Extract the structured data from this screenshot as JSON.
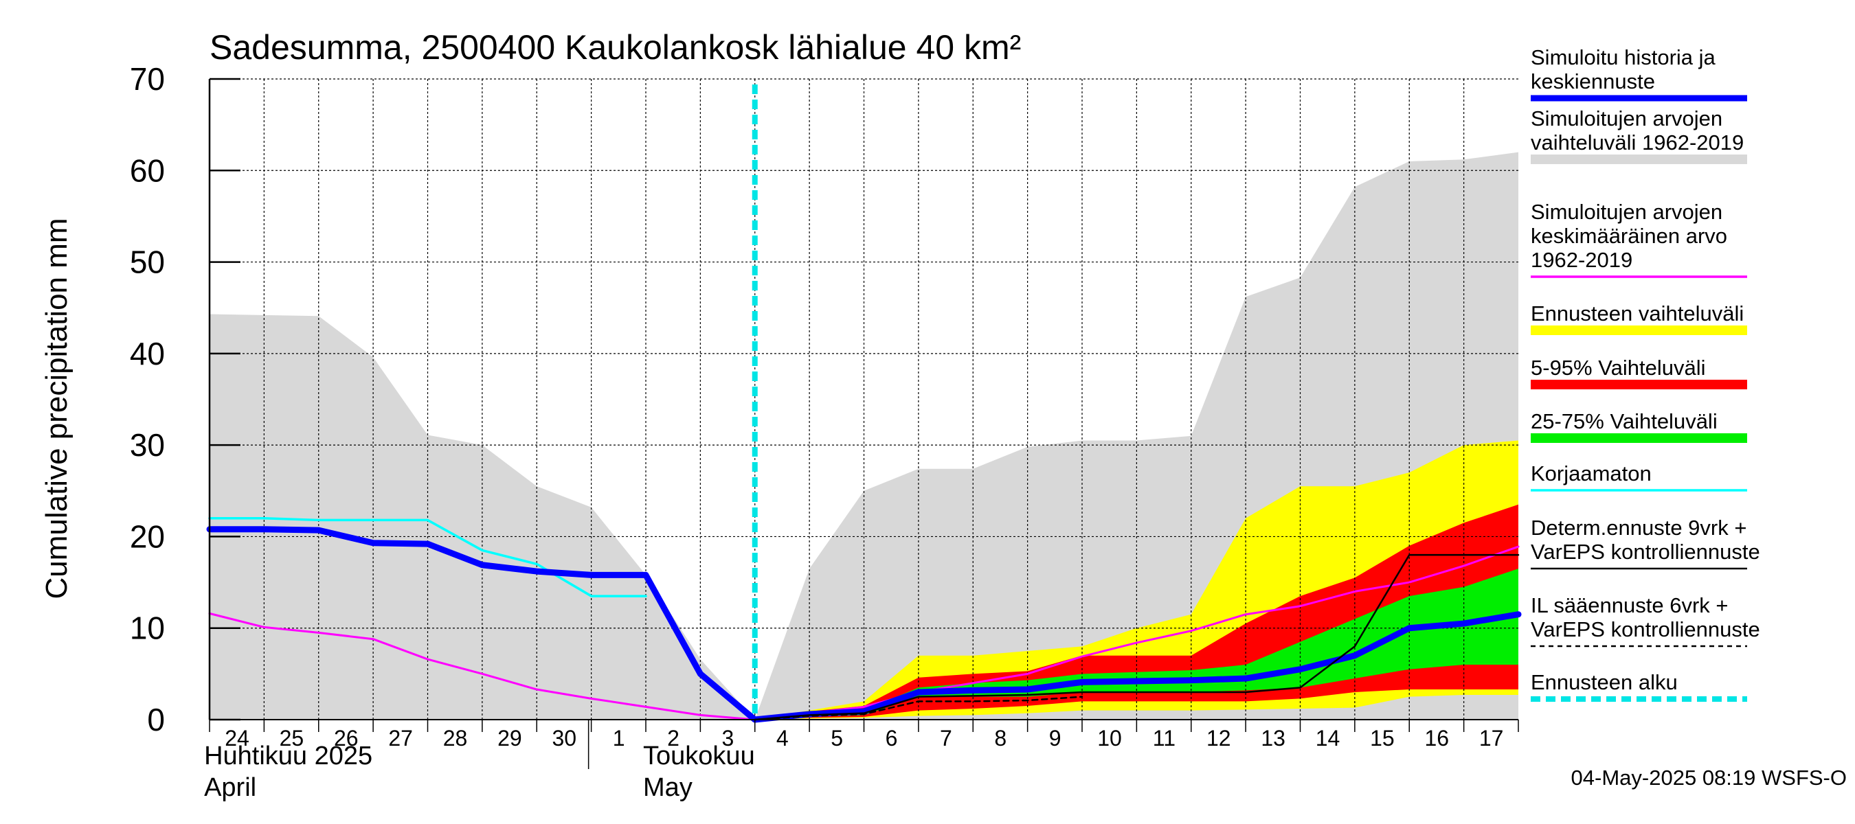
{
  "chart_data": {
    "type": "area",
    "title": "Sadesumma, 2500400 Kaukolankosk lähialue 40 km²",
    "ylabel": "Cumulative precipitation   mm",
    "xlabel": "",
    "ylim": [
      0,
      70
    ],
    "yticks": [
      "0",
      "10",
      "20",
      "30",
      "40",
      "50",
      "60",
      "70"
    ],
    "ytick_values": [
      0,
      10,
      20,
      30,
      40,
      50,
      60,
      70
    ],
    "grid": true,
    "x": [
      "24",
      "25",
      "26",
      "27",
      "28",
      "29",
      "30",
      "1",
      "2",
      "3",
      "4",
      "5",
      "6",
      "7",
      "8",
      "9",
      "10",
      "11",
      "12",
      "13",
      "14",
      "15",
      "16",
      "17"
    ],
    "x_index": [
      0,
      1,
      2,
      3,
      4,
      5,
      6,
      7,
      8,
      9,
      10,
      11,
      12,
      13,
      14,
      15,
      16,
      17,
      18,
      19,
      20,
      21,
      22,
      23,
      24
    ],
    "month_labels": [
      {
        "text": "Huhtikuu  2025",
        "x_at": -0.1,
        "line": 1
      },
      {
        "text": "April",
        "x_at": -0.1,
        "line": 2
      },
      {
        "text": "Toukokuu",
        "x_at": 7.95,
        "line": 1
      },
      {
        "text": "May",
        "x_at": 7.95,
        "line": 2
      }
    ],
    "forecast_start_x": 10,
    "bands": [
      {
        "name": "Simuloitujen arvojen vaihteluväli 1962-2019",
        "color": "#d8d8d8",
        "x": [
          0,
          1,
          2,
          3,
          4,
          5,
          6,
          7,
          8,
          9,
          10,
          11,
          12,
          13,
          14,
          15,
          16,
          17,
          18,
          19,
          20,
          21,
          22,
          23,
          24
        ],
        "upper": [
          44.3,
          44.2,
          44.1,
          39.6,
          31.1,
          30.0,
          25.5,
          23.2,
          15.8,
          6.6,
          0,
          16.5,
          25.0,
          27.4,
          27.4,
          29.8,
          30.5,
          30.5,
          31.0,
          46.2,
          48.3,
          58.2,
          61.0,
          61.2,
          62.0
        ],
        "lower": [
          0,
          0,
          0,
          0,
          0,
          0,
          0,
          0,
          0,
          0,
          0,
          0,
          0,
          0,
          0,
          0,
          0,
          0,
          0,
          0,
          0,
          0,
          0,
          0,
          0
        ]
      },
      {
        "name": "Ennusteen vaihteluväli",
        "color": "#ffff00",
        "x": [
          10,
          11,
          12,
          13,
          14,
          15,
          16,
          17,
          18,
          19,
          20,
          21,
          22,
          23,
          24
        ],
        "upper": [
          0.1,
          1.0,
          2.0,
          7.0,
          7.0,
          7.5,
          8.0,
          10.0,
          11.5,
          22.0,
          25.5,
          25.5,
          27.0,
          30.0,
          30.5
        ],
        "lower": [
          0,
          0.1,
          0.2,
          0.4,
          0.5,
          0.7,
          1.0,
          1.0,
          1.0,
          1.1,
          1.2,
          1.3,
          2.5,
          2.7,
          2.7
        ]
      },
      {
        "name": "5-95% Vaihteluväli",
        "color": "#ff0000",
        "x": [
          10,
          11,
          12,
          13,
          14,
          15,
          16,
          17,
          18,
          19,
          20,
          21,
          22,
          23,
          24
        ],
        "upper": [
          0.1,
          0.9,
          1.5,
          4.6,
          5.0,
          5.3,
          7.0,
          7.0,
          7.0,
          10.5,
          13.5,
          15.5,
          19.0,
          21.5,
          23.5
        ],
        "lower": [
          0,
          0.2,
          0.3,
          1.0,
          1.2,
          1.5,
          2.0,
          2.0,
          2.0,
          2.0,
          2.3,
          3.0,
          3.3,
          3.3,
          3.3
        ]
      },
      {
        "name": "25-75% Vaihteluväli",
        "color": "#00ee00",
        "x": [
          10,
          11,
          12,
          13,
          14,
          15,
          16,
          17,
          18,
          19,
          20,
          21,
          22,
          23,
          24
        ],
        "upper": [
          0.1,
          0.7,
          1.0,
          3.5,
          4.0,
          4.3,
          5.0,
          5.2,
          5.4,
          6.0,
          8.5,
          11.0,
          13.5,
          14.5,
          16.5
        ],
        "lower": [
          0,
          0.3,
          0.5,
          2.5,
          2.5,
          2.5,
          3.0,
          3.0,
          3.0,
          3.2,
          3.5,
          4.5,
          5.5,
          6.0,
          6.0
        ]
      }
    ],
    "series": [
      {
        "name": "Simuloitujen arvojen keskimääräinen arvo 1962-2019",
        "color": "#ff00ff",
        "width": 3,
        "dash": "",
        "x": [
          0,
          1,
          2,
          3,
          4,
          5,
          6,
          7,
          8,
          9,
          10,
          11,
          12,
          13,
          14,
          15,
          16,
          17,
          18,
          19,
          20,
          21,
          22,
          23,
          24
        ],
        "values": [
          11.6,
          10.1,
          9.5,
          8.8,
          6.6,
          5.0,
          3.3,
          2.3,
          1.4,
          0.5,
          0,
          0.7,
          1.4,
          3.0,
          4.0,
          5.0,
          6.9,
          8.4,
          9.7,
          11.5,
          12.4,
          14.0,
          15.0,
          16.8,
          18.9
        ]
      },
      {
        "name": "Korjaamaton",
        "color": "#00ffff",
        "width": 3.5,
        "dash": "",
        "x": [
          0,
          1,
          2,
          3,
          4,
          5,
          6,
          7,
          8
        ],
        "values": [
          22.0,
          22.0,
          21.8,
          21.8,
          21.8,
          18.5,
          17.0,
          13.5,
          13.5
        ]
      },
      {
        "name": "Simuloitu historia ja keskiennuste",
        "color": "#0000ff",
        "width": 9,
        "dash": "",
        "x": [
          0,
          1,
          2,
          3,
          4,
          5,
          6,
          7,
          8,
          9,
          10,
          11,
          12,
          13,
          14,
          15,
          16,
          17,
          18,
          19,
          20,
          21,
          22,
          23,
          24
        ],
        "values": [
          20.8,
          20.8,
          20.7,
          19.3,
          19.2,
          16.9,
          16.2,
          15.8,
          15.8,
          5.0,
          0,
          0.6,
          0.9,
          3.0,
          3.2,
          3.3,
          4.1,
          4.2,
          4.3,
          4.5,
          5.5,
          7.0,
          10.0,
          10.5,
          11.5
        ]
      },
      {
        "name": "Determ.ennuste 9vrk + VarEPS kontrolliennuste",
        "color": "#000000",
        "width": 2.5,
        "dash": "",
        "x": [
          10,
          11,
          12,
          13,
          14,
          15,
          16,
          17,
          18,
          19,
          20,
          21,
          22,
          23,
          24
        ],
        "values": [
          0,
          0.5,
          0.7,
          2.5,
          2.6,
          2.7,
          3.0,
          3.0,
          3.0,
          3.0,
          3.5,
          8.0,
          18.0,
          18.0,
          18.0
        ]
      },
      {
        "name": "IL sääennuste 6vrk + VarEPS kontrolliennuste",
        "color": "#000000",
        "width": 2.5,
        "dash": "8,6",
        "x": [
          10,
          11,
          12,
          13,
          14,
          15,
          16
        ],
        "values": [
          0,
          0.4,
          0.6,
          2.0,
          2.0,
          2.1,
          2.5
        ]
      }
    ],
    "legend_position": "right",
    "legend": [
      {
        "lines": [
          "Simuloitu historia ja",
          "keskiennuste"
        ],
        "color": "#0000ff",
        "style": "line-thick"
      },
      {
        "lines": [
          "Simuloitujen arvojen",
          "vaihteluväli 1962-2019"
        ],
        "color": "#d8d8d8",
        "style": "band"
      },
      {
        "lines": [
          "Simuloitujen arvojen",
          "keskimääräinen arvo",
          "   1962-2019"
        ],
        "color": "#ff00ff",
        "style": "line"
      },
      {
        "lines": [
          "Ennusteen vaihteluväli"
        ],
        "color": "#ffff00",
        "style": "band"
      },
      {
        "lines": [
          "5-95% Vaihteluväli"
        ],
        "color": "#ff0000",
        "style": "band"
      },
      {
        "lines": [
          "25-75% Vaihteluväli"
        ],
        "color": "#00ee00",
        "style": "band"
      },
      {
        "lines": [
          "Korjaamaton"
        ],
        "color": "#00ffff",
        "style": "line"
      },
      {
        "lines": [
          "Determ.ennuste 9vrk +",
          "VarEPS kontrolliennuste"
        ],
        "color": "#000000",
        "style": "line-thin"
      },
      {
        "lines": [
          "IL sääennuste 6vrk  +",
          "  VarEPS kontrolliennuste"
        ],
        "color": "#000000",
        "style": "dashed"
      },
      {
        "lines": [
          "Ennusteen alku"
        ],
        "color": "#00e5e5",
        "style": "dashed-thick"
      }
    ],
    "timestamp": "04-May-2025 08:19 WSFS-O"
  }
}
